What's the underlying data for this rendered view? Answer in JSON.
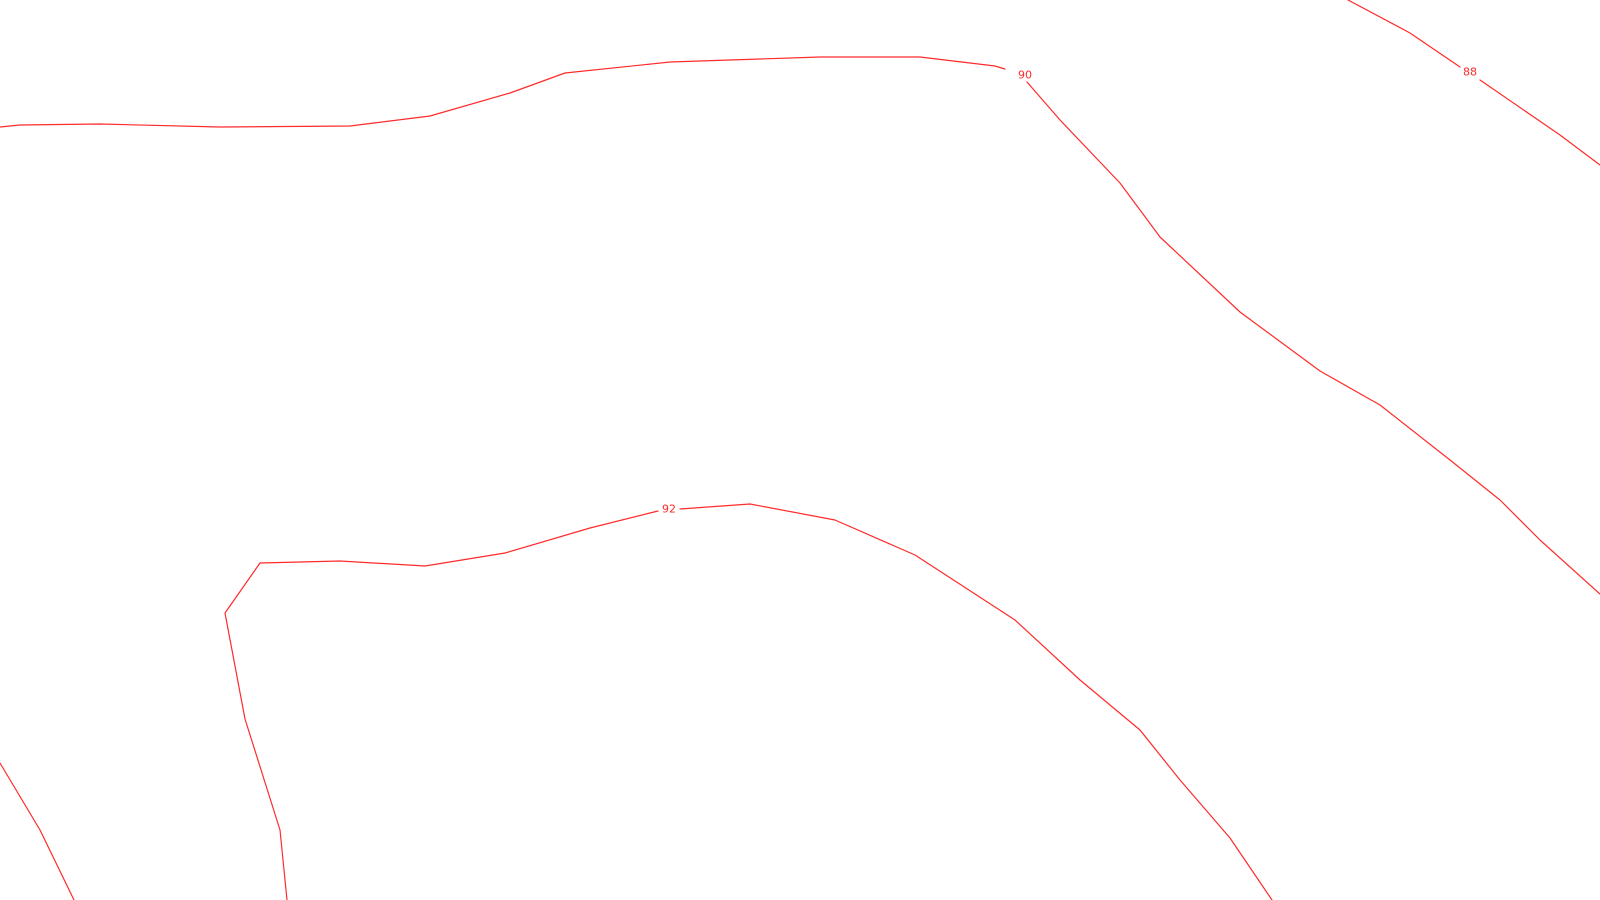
{
  "map": {
    "colors": {
      "background": "#ffffff",
      "contour": "#ff2a2a"
    },
    "contours": [
      {
        "id": "contour-90",
        "label": "90"
      },
      {
        "id": "contour-88",
        "label": "88"
      },
      {
        "id": "contour-92",
        "label": "92"
      },
      {
        "id": "contour-edge",
        "label": ""
      }
    ]
  }
}
